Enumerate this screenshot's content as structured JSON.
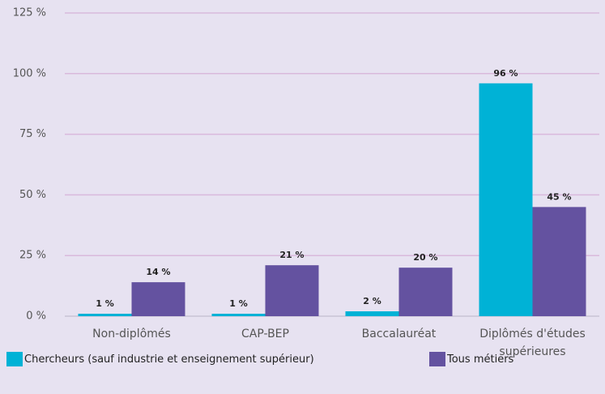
{
  "chart_data": {
    "type": "bar",
    "categories": [
      "Non-diplômés",
      "CAP-BEP",
      "Baccalauréat",
      "Diplômés d'études supérieures"
    ],
    "series": [
      {
        "name": "Chercheurs (sauf industrie et enseignement supérieur)",
        "color": "#00b2d6",
        "values": [
          1,
          1,
          2,
          96
        ],
        "value_labels": [
          "1 %",
          "1 %",
          "2 %",
          "96 %"
        ]
      },
      {
        "name": "Tous métiers",
        "color": "#6452a0",
        "values": [
          14,
          21,
          20,
          45
        ],
        "value_labels": [
          "14 %",
          "21 %",
          "20 %",
          "45 %"
        ]
      }
    ],
    "ylim": [
      0,
      125
    ],
    "yticks": [
      {
        "value": 0,
        "label": "0 %"
      },
      {
        "value": 25,
        "label": "25 %"
      },
      {
        "value": 50,
        "label": "50 %"
      },
      {
        "value": 75,
        "label": "75 %"
      },
      {
        "value": 100,
        "label": "100 %"
      },
      {
        "value": 125,
        "label": "125 %"
      }
    ],
    "grid": true
  }
}
